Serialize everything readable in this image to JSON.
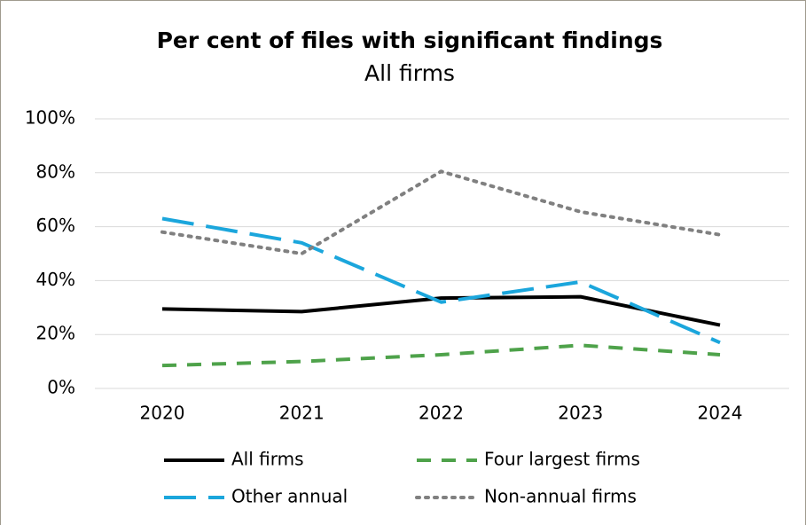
{
  "chart_data": {
    "type": "line",
    "title": "Per cent of files with significant findings",
    "subtitle": "All firms",
    "categories": [
      "2020",
      "2021",
      "2022",
      "2023",
      "2024"
    ],
    "series": [
      {
        "name": "All firms",
        "color": "#000000",
        "line_style": "solid",
        "values": [
          29.5,
          28.5,
          33.5,
          34,
          23.5
        ]
      },
      {
        "name": "Four largest firms",
        "color": "#4ea24a",
        "line_style": "dashed",
        "values": [
          8.5,
          10,
          12.5,
          16,
          12.5
        ]
      },
      {
        "name": "Other annual",
        "color": "#1ba6dc",
        "line_style": "long-dash",
        "values": [
          63,
          54,
          32,
          39.5,
          17
        ]
      },
      {
        "name": "Non-annual firms",
        "color": "#808080",
        "line_style": "dotted",
        "values": [
          58,
          50,
          80.5,
          65.5,
          57
        ]
      }
    ],
    "ylim": [
      0,
      100
    ],
    "yticks": [
      {
        "value": 0,
        "label": "0%"
      },
      {
        "value": 20,
        "label": "20%"
      },
      {
        "value": 40,
        "label": "40%"
      },
      {
        "value": 60,
        "label": "60%"
      },
      {
        "value": 80,
        "label": "80%"
      },
      {
        "value": 100,
        "label": "100%"
      }
    ],
    "grid": true,
    "legend": "bottom"
  }
}
